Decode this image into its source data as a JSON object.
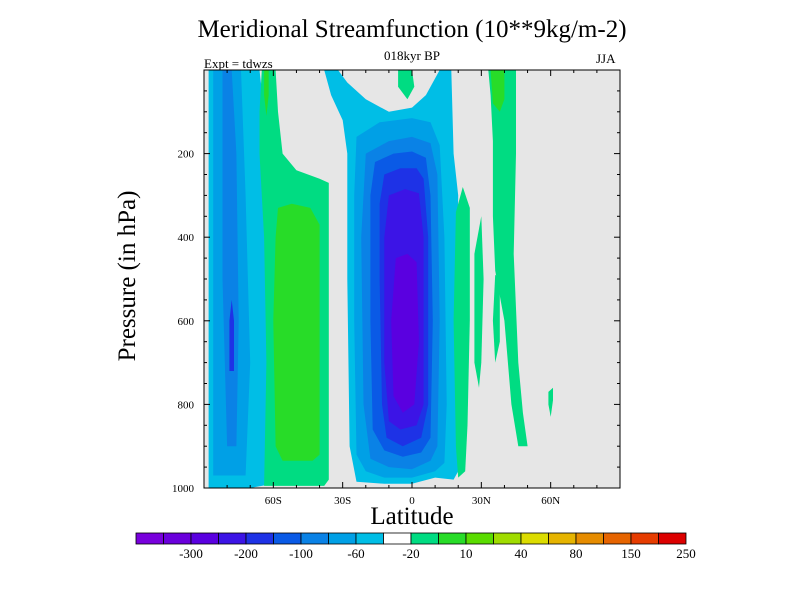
{
  "title": "Meridional Streamfunction (10**9kg/m-2)",
  "subtitle": "018kyr BP",
  "expt_label": "Expt = tdwzs",
  "season": "JJA",
  "chart_data": {
    "type": "heatmap",
    "title": "Meridional Streamfunction (10**9kg/m-2)",
    "subtitle": "018kyr BP",
    "xlabel": "Latitude",
    "ylabel": "Pressure (in hPa)",
    "xlim": [
      -90,
      90
    ],
    "ylim": [
      1000,
      0
    ],
    "x_ticks": [
      -60,
      -30,
      0,
      30,
      60
    ],
    "x_tick_labels": [
      "60S",
      "30S",
      "0",
      "30N",
      "60N"
    ],
    "y_ticks": [
      200,
      400,
      600,
      800,
      1000
    ],
    "y_tick_labels": [
      "200",
      "400",
      "600",
      "800",
      "1000"
    ],
    "background_color": "#e6e6e6",
    "colorbar": {
      "colors": [
        "#7800dc",
        "#6a00dc",
        "#5a00e0",
        "#3c14e6",
        "#1e32e6",
        "#0a5ae6",
        "#0a82e6",
        "#00a0e6",
        "#00bee6",
        "#ffffff",
        "#00dc82",
        "#28dc28",
        "#5adc00",
        "#a0dc00",
        "#dcdc00",
        "#e6b400",
        "#e68c00",
        "#e66400",
        "#e63c00",
        "#dc0000"
      ],
      "tick_labels": [
        "-300",
        "-200",
        "-100",
        "-60",
        "-20",
        "10",
        "40",
        "80",
        "150",
        "250"
      ]
    },
    "regions": [
      {
        "name": "sh-outer-low",
        "level": -20,
        "fill": "#00bee6",
        "points": [
          [
            -88,
            1000
          ],
          [
            -70,
            1000
          ],
          [
            -65,
            995
          ],
          [
            -60,
            990
          ],
          [
            -60,
            800
          ],
          [
            -62,
            400
          ],
          [
            -64,
            100
          ],
          [
            -66,
            0
          ],
          [
            -88,
            0
          ]
        ]
      },
      {
        "name": "sh-middle-low",
        "level": -60,
        "fill": "#00a0e6",
        "points": [
          [
            -86,
            970
          ],
          [
            -72,
            970
          ],
          [
            -70,
            700
          ],
          [
            -72,
            300
          ],
          [
            -74,
            0
          ],
          [
            -86,
            0
          ],
          [
            -86,
            500
          ]
        ]
      },
      {
        "name": "sh-inner-low",
        "level": -100,
        "fill": "#0a82e6",
        "points": [
          [
            -80,
            900
          ],
          [
            -76,
            900
          ],
          [
            -75,
            600
          ],
          [
            -76,
            200
          ],
          [
            -78,
            0
          ],
          [
            -82,
            0
          ],
          [
            -82,
            500
          ]
        ]
      },
      {
        "name": "sh-core-low",
        "level": -200,
        "fill": "#1e32e6",
        "points": [
          [
            -79,
            720
          ],
          [
            -77,
            720
          ],
          [
            -77,
            600
          ],
          [
            -78,
            550
          ],
          [
            -79,
            600
          ]
        ]
      },
      {
        "name": "sh-upper-high",
        "level": 10,
        "fill": "#00dc82",
        "points": [
          [
            -65,
            0
          ],
          [
            -59,
            0
          ],
          [
            -58,
            100
          ],
          [
            -56,
            200
          ],
          [
            -50,
            240
          ],
          [
            -40,
            260
          ],
          [
            -36,
            270
          ],
          [
            -36,
            980
          ],
          [
            -38,
            995
          ],
          [
            -64,
            995
          ],
          [
            -63,
            700
          ],
          [
            -64,
            400
          ],
          [
            -66,
            200
          ],
          [
            -66,
            100
          ]
        ]
      },
      {
        "name": "sh-core-high",
        "level": 40,
        "fill": "#28dc28",
        "points": [
          [
            -58,
            330
          ],
          [
            -52,
            320
          ],
          [
            -44,
            330
          ],
          [
            -40,
            370
          ],
          [
            -40,
            920
          ],
          [
            -43,
            935
          ],
          [
            -56,
            935
          ],
          [
            -59,
            900
          ],
          [
            -60,
            600
          ],
          [
            -59,
            400
          ]
        ]
      },
      {
        "name": "sh-top-high",
        "level": 40,
        "fill": "#28dc28",
        "points": [
          [
            -64,
            0
          ],
          [
            -62,
            0
          ],
          [
            -62,
            60
          ],
          [
            -63,
            110
          ],
          [
            -64,
            60
          ]
        ]
      },
      {
        "name": "tropical-outer-low",
        "level": -20,
        "fill": "#00bee6",
        "points": [
          [
            -38,
            0
          ],
          [
            -32,
            0
          ],
          [
            -28,
            30
          ],
          [
            -20,
            70
          ],
          [
            -10,
            100
          ],
          [
            0,
            90
          ],
          [
            6,
            60
          ],
          [
            12,
            0
          ],
          [
            17,
            0
          ],
          [
            18,
            200
          ],
          [
            20,
            300
          ],
          [
            19,
            600
          ],
          [
            20,
            800
          ],
          [
            21,
            900
          ],
          [
            20,
            960
          ],
          [
            18,
            980
          ],
          [
            10,
            975
          ],
          [
            0,
            990
          ],
          [
            -12,
            990
          ],
          [
            -24,
            985
          ],
          [
            -27,
            900
          ],
          [
            -28,
            500
          ],
          [
            -28,
            200
          ],
          [
            -30,
            120
          ],
          [
            -35,
            60
          ]
        ]
      },
      {
        "name": "tropical-low-20",
        "level": -20,
        "fill": "#00a0e6",
        "points": [
          [
            -24,
            160
          ],
          [
            -14,
            125
          ],
          [
            0,
            115
          ],
          [
            8,
            125
          ],
          [
            12,
            180
          ],
          [
            14,
            400
          ],
          [
            15,
            800
          ],
          [
            14,
            940
          ],
          [
            10,
            960
          ],
          [
            0,
            975
          ],
          [
            -12,
            975
          ],
          [
            -20,
            960
          ],
          [
            -24,
            920
          ],
          [
            -25,
            600
          ],
          [
            -25,
            300
          ]
        ]
      },
      {
        "name": "tropical-low-60",
        "level": -60,
        "fill": "#0a82e6",
        "points": [
          [
            -20,
            200
          ],
          [
            -10,
            170
          ],
          [
            0,
            160
          ],
          [
            8,
            175
          ],
          [
            11,
            250
          ],
          [
            12,
            600
          ],
          [
            11,
            900
          ],
          [
            8,
            935
          ],
          [
            0,
            955
          ],
          [
            -10,
            950
          ],
          [
            -18,
            930
          ],
          [
            -21,
            800
          ],
          [
            -22,
            400
          ]
        ]
      },
      {
        "name": "tropical-low-100",
        "level": -100,
        "fill": "#0a5ae6",
        "points": [
          [
            -16,
            220
          ],
          [
            -8,
            200
          ],
          [
            0,
            195
          ],
          [
            6,
            210
          ],
          [
            8,
            300
          ],
          [
            9,
            600
          ],
          [
            8,
            880
          ],
          [
            4,
            915
          ],
          [
            -4,
            925
          ],
          [
            -12,
            910
          ],
          [
            -17,
            860
          ],
          [
            -18,
            600
          ],
          [
            -18,
            300
          ]
        ]
      },
      {
        "name": "tropical-low-150",
        "level": -150,
        "fill": "#1e32e6",
        "points": [
          [
            -12,
            250
          ],
          [
            -5,
            235
          ],
          [
            2,
            235
          ],
          [
            5,
            260
          ],
          [
            7,
            400
          ],
          [
            7,
            800
          ],
          [
            4,
            880
          ],
          [
            -4,
            900
          ],
          [
            -11,
            880
          ],
          [
            -13,
            800
          ],
          [
            -14,
            500
          ],
          [
            -14,
            320
          ]
        ]
      },
      {
        "name": "tropical-low-200",
        "level": -200,
        "fill": "#3c14e6",
        "points": [
          [
            -10,
            300
          ],
          [
            -3,
            285
          ],
          [
            3,
            295
          ],
          [
            5,
            400
          ],
          [
            5,
            800
          ],
          [
            2,
            850
          ],
          [
            -5,
            860
          ],
          [
            -10,
            840
          ],
          [
            -12,
            700
          ],
          [
            -12,
            400
          ]
        ]
      },
      {
        "name": "tropical-core-low",
        "level": -300,
        "fill": "#5a00e0",
        "points": [
          [
            -7,
            450
          ],
          [
            -2,
            440
          ],
          [
            2,
            460
          ],
          [
            3,
            650
          ],
          [
            1,
            800
          ],
          [
            -4,
            820
          ],
          [
            -8,
            780
          ],
          [
            -9,
            600
          ]
        ]
      },
      {
        "name": "nh-tropical-upper-high",
        "level": 10,
        "fill": "#00dc82",
        "points": [
          [
            -6,
            0
          ],
          [
            0,
            0
          ],
          [
            1,
            40
          ],
          [
            -2,
            70
          ],
          [
            -6,
            40
          ]
        ]
      },
      {
        "name": "nh-tropical-lower-high",
        "level": 10,
        "fill": "#00dc82",
        "points": [
          [
            19,
            340
          ],
          [
            22,
            280
          ],
          [
            25,
            330
          ],
          [
            25,
            600
          ],
          [
            24,
            850
          ],
          [
            23,
            960
          ],
          [
            20,
            975
          ],
          [
            19,
            900
          ],
          [
            18,
            600
          ]
        ]
      },
      {
        "name": "nh-lower-high-2",
        "level": 10,
        "fill": "#00dc82",
        "points": [
          [
            27,
            440
          ],
          [
            30,
            350
          ],
          [
            31,
            500
          ],
          [
            30,
            700
          ],
          [
            29,
            760
          ],
          [
            27,
            700
          ]
        ]
      },
      {
        "name": "nh-upper-high",
        "level": 10,
        "fill": "#00dc82",
        "points": [
          [
            33,
            0
          ],
          [
            45,
            0
          ],
          [
            45,
            200
          ],
          [
            44,
            440
          ],
          [
            46,
            700
          ],
          [
            48,
            820
          ],
          [
            50,
            900
          ],
          [
            46,
            900
          ],
          [
            43,
            800
          ],
          [
            40,
            600
          ],
          [
            36,
            480
          ],
          [
            35,
            350
          ],
          [
            35,
            170
          ],
          [
            34,
            60
          ]
        ]
      },
      {
        "name": "nh-upper-high-core",
        "level": 40,
        "fill": "#28dc28",
        "points": [
          [
            34,
            0
          ],
          [
            40,
            0
          ],
          [
            40,
            70
          ],
          [
            38,
            100
          ],
          [
            35,
            80
          ]
        ]
      },
      {
        "name": "nh-extra-high",
        "level": 10,
        "fill": "#00dc82",
        "points": [
          [
            36,
            490
          ],
          [
            38,
            500
          ],
          [
            38,
            650
          ],
          [
            36,
            700
          ],
          [
            35,
            600
          ]
        ]
      },
      {
        "name": "nh-small-high",
        "level": 10,
        "fill": "#00dc82",
        "points": [
          [
            59,
            770
          ],
          [
            61,
            760
          ],
          [
            61,
            790
          ],
          [
            60,
            830
          ],
          [
            59,
            800
          ]
        ]
      }
    ]
  }
}
